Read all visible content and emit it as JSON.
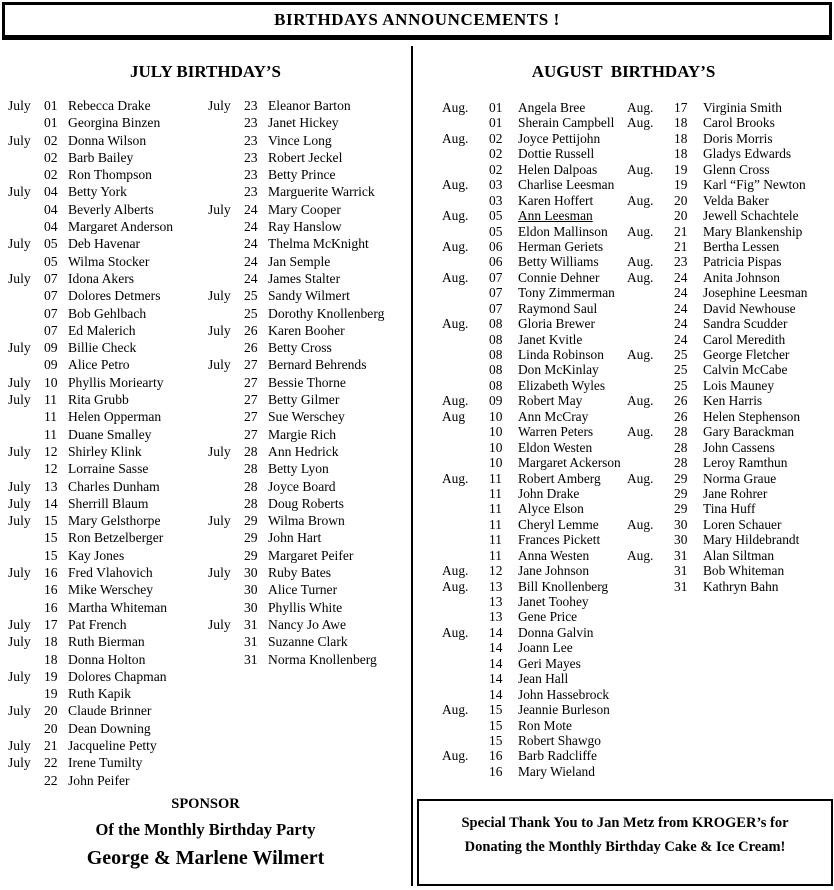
{
  "header": {
    "title": "BIRTHDAYS ANNOUNCEMENTS !"
  },
  "july": {
    "heading": "JULY BIRTHDAY’S",
    "col1": [
      {
        "m": "July",
        "d": "01",
        "n": "Rebecca Drake"
      },
      {
        "m": "",
        "d": "01",
        "n": "Georgina Binzen"
      },
      {
        "m": "July",
        "d": "02",
        "n": "Donna Wilson"
      },
      {
        "m": "",
        "d": "02",
        "n": "Barb Bailey"
      },
      {
        "m": "",
        "d": "02",
        "n": "Ron Thompson"
      },
      {
        "m": "July",
        "d": "04",
        "n": "Betty York"
      },
      {
        "m": "",
        "d": "04",
        "n": "Beverly Alberts"
      },
      {
        "m": "",
        "d": "04",
        "n": "Margaret Anderson"
      },
      {
        "m": "July",
        "d": "05",
        "n": "Deb Havenar"
      },
      {
        "m": "",
        "d": "05",
        "n": "Wilma Stocker"
      },
      {
        "m": "July",
        "d": "07",
        "n": "Idona Akers"
      },
      {
        "m": "",
        "d": "07",
        "n": "Dolores Detmers"
      },
      {
        "m": "",
        "d": "07",
        "n": "Bob Gehlbach"
      },
      {
        "m": "",
        "d": "07",
        "n": "Ed Malerich"
      },
      {
        "m": "July",
        "d": "09",
        "n": "Billie Check"
      },
      {
        "m": "",
        "d": "09",
        "n": "Alice Petro"
      },
      {
        "m": "July",
        "d": "10",
        "n": "Phyllis Moriearty"
      },
      {
        "m": "July",
        "d": "11",
        "n": "Rita Grubb"
      },
      {
        "m": "",
        "d": "11",
        "n": "Helen Opperman"
      },
      {
        "m": "",
        "d": "11",
        "n": "Duane Smalley"
      },
      {
        "m": "July",
        "d": "12",
        "n": "Shirley Klink"
      },
      {
        "m": "",
        "d": "12",
        "n": "Lorraine Sasse"
      },
      {
        "m": "July",
        "d": "13",
        "n": "Charles Dunham"
      },
      {
        "m": "July",
        "d": "14",
        "n": "Sherrill Blaum"
      },
      {
        "m": "July",
        "d": "15",
        "n": "Mary Gelsthorpe"
      },
      {
        "m": "",
        "d": "15",
        "n": "Ron Betzelberger"
      },
      {
        "m": "",
        "d": "15",
        "n": "Kay Jones"
      },
      {
        "m": "July",
        "d": "16",
        "n": "Fred Vlahovich"
      },
      {
        "m": "",
        "d": "16",
        "n": "Mike Werschey"
      },
      {
        "m": "",
        "d": "16",
        "n": "Martha Whiteman"
      },
      {
        "m": "July",
        "d": "17",
        "n": "Pat French"
      },
      {
        "m": "July",
        "d": "18",
        "n": "Ruth Bierman"
      },
      {
        "m": "",
        "d": "18",
        "n": "Donna Holton"
      },
      {
        "m": "July",
        "d": "19",
        "n": "Dolores Chapman"
      },
      {
        "m": "",
        "d": "19",
        "n": "Ruth Kapik"
      },
      {
        "m": "July",
        "d": "20",
        "n": "Claude Brinner"
      },
      {
        "m": "",
        "d": "20",
        "n": "Dean Downing"
      },
      {
        "m": "July",
        "d": "21",
        "n": "Jacqueline Petty"
      },
      {
        "m": "July",
        "d": "22",
        "n": "Irene Tumilty"
      },
      {
        "m": "",
        "d": "22",
        "n": "John Peifer"
      }
    ],
    "col2": [
      {
        "m": "July",
        "d": "23",
        "n": "Eleanor Barton"
      },
      {
        "m": "",
        "d": "23",
        "n": "Janet Hickey"
      },
      {
        "m": "",
        "d": "23",
        "n": "Vince Long"
      },
      {
        "m": "",
        "d": "23",
        "n": "Robert Jeckel"
      },
      {
        "m": "",
        "d": "23",
        "n": "Betty Prince"
      },
      {
        "m": "",
        "d": "23",
        "n": "Marguerite Warrick"
      },
      {
        "m": "July",
        "d": "24",
        "n": "Mary Cooper"
      },
      {
        "m": "",
        "d": "24",
        "n": "Ray Hanslow"
      },
      {
        "m": "",
        "d": "24",
        "n": "Thelma McKnight"
      },
      {
        "m": "",
        "d": "24",
        "n": "Jan Semple"
      },
      {
        "m": "",
        "d": "24",
        "n": "James Stalter"
      },
      {
        "m": "July",
        "d": "25",
        "n": "Sandy Wilmert"
      },
      {
        "m": "",
        "d": "25",
        "n": "Dorothy Knollenberg"
      },
      {
        "m": "July",
        "d": "26",
        "n": "Karen Booher"
      },
      {
        "m": "",
        "d": "26",
        "n": "Betty Cross"
      },
      {
        "m": "July",
        "d": "27",
        "n": "Bernard Behrends"
      },
      {
        "m": "",
        "d": "27",
        "n": "Bessie Thorne"
      },
      {
        "m": "",
        "d": "27",
        "n": "Betty Gilmer"
      },
      {
        "m": "",
        "d": "27",
        "n": "Sue Werschey"
      },
      {
        "m": "",
        "d": "27",
        "n": "Margie Rich"
      },
      {
        "m": "July",
        "d": "28",
        "n": "Ann Hedrick"
      },
      {
        "m": "",
        "d": "28",
        "n": "Betty Lyon"
      },
      {
        "m": "",
        "d": "28",
        "n": "Joyce Board"
      },
      {
        "m": "",
        "d": "28",
        "n": "Doug Roberts"
      },
      {
        "m": "July",
        "d": "29",
        "n": "Wilma Brown"
      },
      {
        "m": "",
        "d": "29",
        "n": "John Hart"
      },
      {
        "m": "",
        "d": "29",
        "n": "Margaret Peifer"
      },
      {
        "m": "July",
        "d": "30",
        "n": "Ruby Bates"
      },
      {
        "m": "",
        "d": "30",
        "n": "Alice Turner"
      },
      {
        "m": "",
        "d": "30",
        "n": "Phyllis White"
      },
      {
        "m": "July",
        "d": "31",
        "n": "Nancy Jo Awe"
      },
      {
        "m": "",
        "d": "31",
        "n": "Suzanne Clark"
      },
      {
        "m": "",
        "d": "31",
        "n": "Norma Knollenberg"
      }
    ]
  },
  "august": {
    "heading": "AUGUST  BIRTHDAY’S",
    "col1": [
      {
        "m": "Aug.",
        "d": "01",
        "n": "Angela Bree"
      },
      {
        "m": "",
        "d": "01",
        "n": "Sherain Campbell"
      },
      {
        "m": "Aug.",
        "d": "02",
        "n": "Joyce Pettijohn"
      },
      {
        "m": "",
        "d": "02",
        "n": "Dottie Russell"
      },
      {
        "m": "",
        "d": "02",
        "n": "Helen Dalpoas"
      },
      {
        "m": "Aug.",
        "d": "03",
        "n": "Charlise Leesman"
      },
      {
        "m": "",
        "d": "03",
        "n": "Karen Hoffert"
      },
      {
        "m": "Aug.",
        "d": "05",
        "n": "Ann Leesman",
        "u": true
      },
      {
        "m": "",
        "d": "05",
        "n": "Eldon Mallinson"
      },
      {
        "m": "Aug.",
        "d": "06",
        "n": "Herman Geriets"
      },
      {
        "m": "",
        "d": "06",
        "n": "Betty Williams"
      },
      {
        "m": "Aug.",
        "d": "07",
        "n": "Connie Dehner"
      },
      {
        "m": "",
        "d": "07",
        "n": "Tony Zimmerman"
      },
      {
        "m": "",
        "d": "07",
        "n": "Raymond Saul"
      },
      {
        "m": "Aug.",
        "d": "08",
        "n": "Gloria Brewer"
      },
      {
        "m": "",
        "d": "08",
        "n": "Janet Kvitle"
      },
      {
        "m": "",
        "d": "08",
        "n": "Linda Robinson"
      },
      {
        "m": "",
        "d": "08",
        "n": "Don McKinlay"
      },
      {
        "m": "",
        "d": "08",
        "n": "Elizabeth Wyles"
      },
      {
        "m": "Aug.",
        "d": "09",
        "n": "Robert May"
      },
      {
        "m": "Aug",
        "d": "10",
        "n": "Ann McCray"
      },
      {
        "m": "",
        "d": "10",
        "n": "Warren Peters"
      },
      {
        "m": "",
        "d": "10",
        "n": "Eldon Westen"
      },
      {
        "m": "",
        "d": "10",
        "n": "Margaret Ackerson"
      },
      {
        "m": "Aug.",
        "d": "11",
        "n": "Robert Amberg"
      },
      {
        "m": "",
        "d": "11",
        "n": "John Drake"
      },
      {
        "m": "",
        "d": "11",
        "n": "Alyce Elson"
      },
      {
        "m": "",
        "d": "11",
        "n": "Cheryl Lemme"
      },
      {
        "m": "",
        "d": "11",
        "n": "Frances Pickett"
      },
      {
        "m": "",
        "d": "11",
        "n": "Anna Westen"
      },
      {
        "m": "Aug.",
        "d": "12",
        "n": "Jane Johnson"
      },
      {
        "m": "Aug.",
        "d": "13",
        "n": "Bill Knollenberg"
      },
      {
        "m": "",
        "d": "13",
        "n": "Janet Toohey"
      },
      {
        "m": "",
        "d": "13",
        "n": "Gene Price"
      },
      {
        "m": "Aug.",
        "d": "14",
        "n": "Donna Galvin"
      },
      {
        "m": "",
        "d": "14",
        "n": "Joann Lee"
      },
      {
        "m": "",
        "d": "14",
        "n": "Geri Mayes"
      },
      {
        "m": "",
        "d": "14",
        "n": "Jean Hall"
      },
      {
        "m": "",
        "d": "14",
        "n": "John Hassebrock"
      },
      {
        "m": "Aug.",
        "d": "15",
        "n": "Jeannie Burleson"
      },
      {
        "m": "",
        "d": "15",
        "n": "Ron Mote"
      },
      {
        "m": "",
        "d": "15",
        "n": "Robert Shawgo"
      },
      {
        "m": "Aug.",
        "d": "16",
        "n": "Barb Radcliffe"
      },
      {
        "m": "",
        "d": "16",
        "n": "Mary Wieland"
      }
    ],
    "col2": [
      {
        "m": "Aug.",
        "d": "17",
        "n": "Virginia Smith"
      },
      {
        "m": "Aug.",
        "d": "18",
        "n": "Carol Brooks"
      },
      {
        "m": "",
        "d": "18",
        "n": "Doris Morris"
      },
      {
        "m": "",
        "d": "18",
        "n": "Gladys Edwards"
      },
      {
        "m": "Aug.",
        "d": "19",
        "n": "Glenn Cross"
      },
      {
        "m": "",
        "d": "19",
        "n": "Karl “Fig” Newton"
      },
      {
        "m": "Aug.",
        "d": "20",
        "n": "Velda Baker"
      },
      {
        "m": "",
        "d": "20",
        "n": "Jewell Schachtele"
      },
      {
        "m": "Aug.",
        "d": "21",
        "n": "Mary Blankenship"
      },
      {
        "m": "",
        "d": "21",
        "n": "Bertha Lessen"
      },
      {
        "m": "Aug.",
        "d": "23",
        "n": "Patricia Pispas"
      },
      {
        "m": "Aug.",
        "d": "24",
        "n": "Anita Johnson"
      },
      {
        "m": "",
        "d": "24",
        "n": "Josephine Leesman"
      },
      {
        "m": "",
        "d": "24",
        "n": "David Newhouse"
      },
      {
        "m": "",
        "d": "24",
        "n": "Sandra Scudder"
      },
      {
        "m": "",
        "d": "24",
        "n": "Carol Meredith"
      },
      {
        "m": "Aug.",
        "d": "25",
        "n": "George Fletcher"
      },
      {
        "m": "",
        "d": "25",
        "n": "Calvin McCabe"
      },
      {
        "m": "",
        "d": "25",
        "n": "Lois Mauney"
      },
      {
        "m": "Aug.",
        "d": "26",
        "n": "Ken Harris"
      },
      {
        "m": "",
        "d": "26",
        "n": "Helen Stephenson"
      },
      {
        "m": "Aug.",
        "d": "28",
        "n": "Gary Barackman"
      },
      {
        "m": "",
        "d": "28",
        "n": "John Cassens"
      },
      {
        "m": "",
        "d": "28",
        "n": "Leroy Ramthun"
      },
      {
        "m": "Aug.",
        "d": "29",
        "n": "Norma Graue"
      },
      {
        "m": "",
        "d": "29",
        "n": "Jane Rohrer"
      },
      {
        "m": "",
        "d": "29",
        "n": "Tina Huff"
      },
      {
        "m": "Aug.",
        "d": "30",
        "n": "Loren Schauer"
      },
      {
        "m": "",
        "d": "30",
        "n": "Mary Hildebrandt"
      },
      {
        "m": "Aug.",
        "d": "31",
        "n": "Alan Siltman"
      },
      {
        "m": "",
        "d": "31",
        "n": "Bob Whiteman"
      },
      {
        "m": "",
        "d": "31",
        "n": "Kathryn Bahn"
      }
    ]
  },
  "sponsor": {
    "line1": "SPONSOR",
    "line2": "Of the Monthly Birthday Party",
    "line3": "George & Marlene Wilmert"
  },
  "thanks": {
    "line1": "Special Thank You to Jan Metz from KROGER’s for",
    "line2": "Donating the Monthly Birthday Cake & Ice Cream!"
  }
}
